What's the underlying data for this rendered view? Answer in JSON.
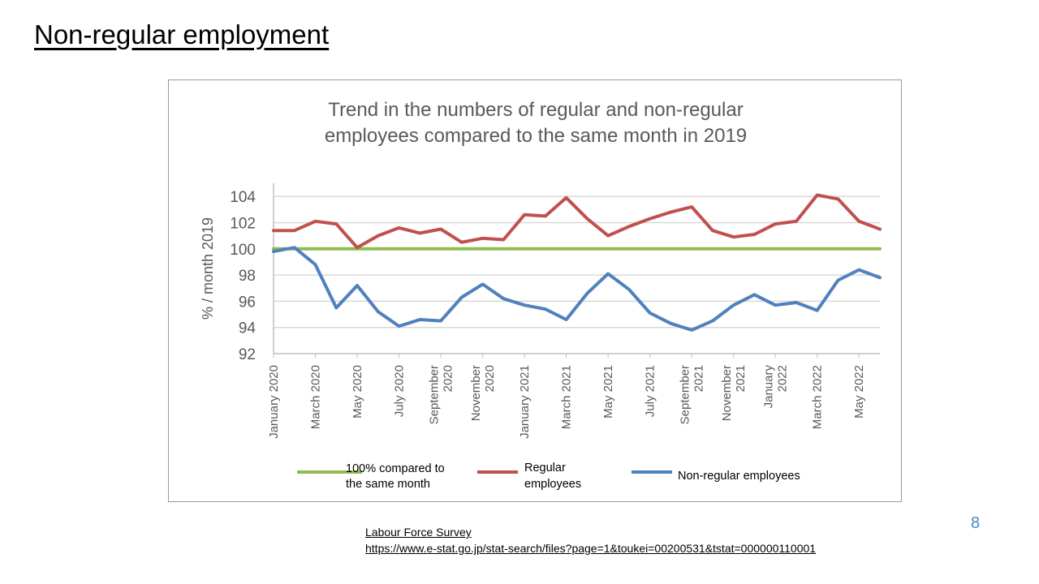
{
  "slide": {
    "title": "Non-regular employment",
    "page_number": "8"
  },
  "source": {
    "label": "Labour Force Survey",
    "url": "https://www.e-stat.go.jp/stat-search/files?page=1&toukei=00200531&tstat=000000110001"
  },
  "colors": {
    "baseline": "#8fbc4f",
    "regular": "#c0504d",
    "non_regular": "#4f81bd",
    "grid": "#d9d9d9",
    "text": "#595959"
  },
  "chart_data": {
    "type": "line",
    "title": [
      "Trend in the numbers of regular and non-regular",
      "employees compared to the same month in 2019"
    ],
    "ylabel": "% / month 2019",
    "xlabel": "",
    "ylim": [
      92,
      105
    ],
    "yticks": [
      92,
      94,
      96,
      98,
      100,
      102,
      104
    ],
    "grid": true,
    "legend_position": "bottom",
    "x": [
      "Jan 2020",
      "Feb 2020",
      "Mar 2020",
      "Apr 2020",
      "May 2020",
      "Jun 2020",
      "Jul 2020",
      "Aug 2020",
      "Sep 2020",
      "Oct 2020",
      "Nov 2020",
      "Dec 2020",
      "Jan 2021",
      "Feb 2021",
      "Mar 2021",
      "Apr 2021",
      "May 2021",
      "Jun 2021",
      "Jul 2021",
      "Aug 2021",
      "Sep 2021",
      "Oct 2021",
      "Nov 2021",
      "Dec 2021",
      "Jan 2022",
      "Feb 2022",
      "Mar 2022",
      "Apr 2022",
      "May 2022",
      "Jun 2022"
    ],
    "tick_labels": [
      {
        "index": 0,
        "lines": [
          "January 2020"
        ]
      },
      {
        "index": 2,
        "lines": [
          "March 2020"
        ]
      },
      {
        "index": 4,
        "lines": [
          "May 2020"
        ]
      },
      {
        "index": 6,
        "lines": [
          "July 2020"
        ]
      },
      {
        "index": 8,
        "lines": [
          "September",
          "2020"
        ]
      },
      {
        "index": 10,
        "lines": [
          "November",
          "2020"
        ]
      },
      {
        "index": 12,
        "lines": [
          "January 2021"
        ]
      },
      {
        "index": 14,
        "lines": [
          "March 2021"
        ]
      },
      {
        "index": 16,
        "lines": [
          "May 2021"
        ]
      },
      {
        "index": 18,
        "lines": [
          "July 2021"
        ]
      },
      {
        "index": 20,
        "lines": [
          "September",
          "2021"
        ]
      },
      {
        "index": 22,
        "lines": [
          "November",
          "2021"
        ]
      },
      {
        "index": 24,
        "lines": [
          "January",
          "2022"
        ]
      },
      {
        "index": 26,
        "lines": [
          "March 2022"
        ]
      },
      {
        "index": 28,
        "lines": [
          "May 2022"
        ]
      }
    ],
    "series": [
      {
        "name": "100% compared to the same month",
        "key": "baseline",
        "values": [
          100,
          100,
          100,
          100,
          100,
          100,
          100,
          100,
          100,
          100,
          100,
          100,
          100,
          100,
          100,
          100,
          100,
          100,
          100,
          100,
          100,
          100,
          100,
          100,
          100,
          100,
          100,
          100,
          100,
          100
        ]
      },
      {
        "name": "Regular employees",
        "key": "regular",
        "values": [
          101.4,
          101.4,
          102.1,
          101.9,
          100.1,
          101.0,
          101.6,
          101.2,
          101.5,
          100.5,
          100.8,
          100.7,
          102.6,
          102.5,
          103.9,
          102.3,
          101.0,
          101.7,
          102.3,
          102.8,
          103.2,
          101.4,
          100.9,
          101.1,
          101.9,
          102.1,
          104.1,
          103.8,
          102.1,
          101.5
        ]
      },
      {
        "name": "Non-regular employees",
        "key": "non_regular",
        "values": [
          99.8,
          100.1,
          98.8,
          95.5,
          97.2,
          95.2,
          94.1,
          94.6,
          94.5,
          96.3,
          97.3,
          96.2,
          95.7,
          95.4,
          94.6,
          96.6,
          98.1,
          96.9,
          95.1,
          94.3,
          93.8,
          94.5,
          95.7,
          96.5,
          95.7,
          95.9,
          95.3,
          97.6,
          98.4,
          97.8
        ]
      }
    ]
  }
}
